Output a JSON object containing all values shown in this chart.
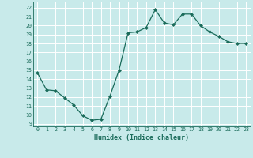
{
  "x": [
    0,
    1,
    2,
    3,
    4,
    5,
    6,
    7,
    8,
    9,
    10,
    11,
    12,
    13,
    14,
    15,
    16,
    17,
    18,
    19,
    20,
    21,
    22,
    23
  ],
  "y": [
    14.7,
    12.8,
    12.7,
    11.9,
    11.1,
    9.9,
    9.4,
    9.5,
    12.1,
    15.0,
    19.2,
    19.3,
    19.8,
    21.8,
    20.3,
    20.1,
    21.3,
    21.3,
    20.0,
    19.3,
    18.8,
    18.2,
    18.0,
    18.0
  ],
  "xlabel": "Humidex (Indice chaleur)",
  "ylabel_ticks": [
    9,
    10,
    11,
    12,
    13,
    14,
    15,
    16,
    17,
    18,
    19,
    20,
    21,
    22
  ],
  "xlim": [
    -0.5,
    23.5
  ],
  "ylim": [
    8.7,
    22.7
  ],
  "bg_color": "#c8eaea",
  "grid_color": "#b0d8d8",
  "line_color": "#1a6b5a",
  "marker_color": "#1a6b5a",
  "label_color": "#1a6b5a"
}
